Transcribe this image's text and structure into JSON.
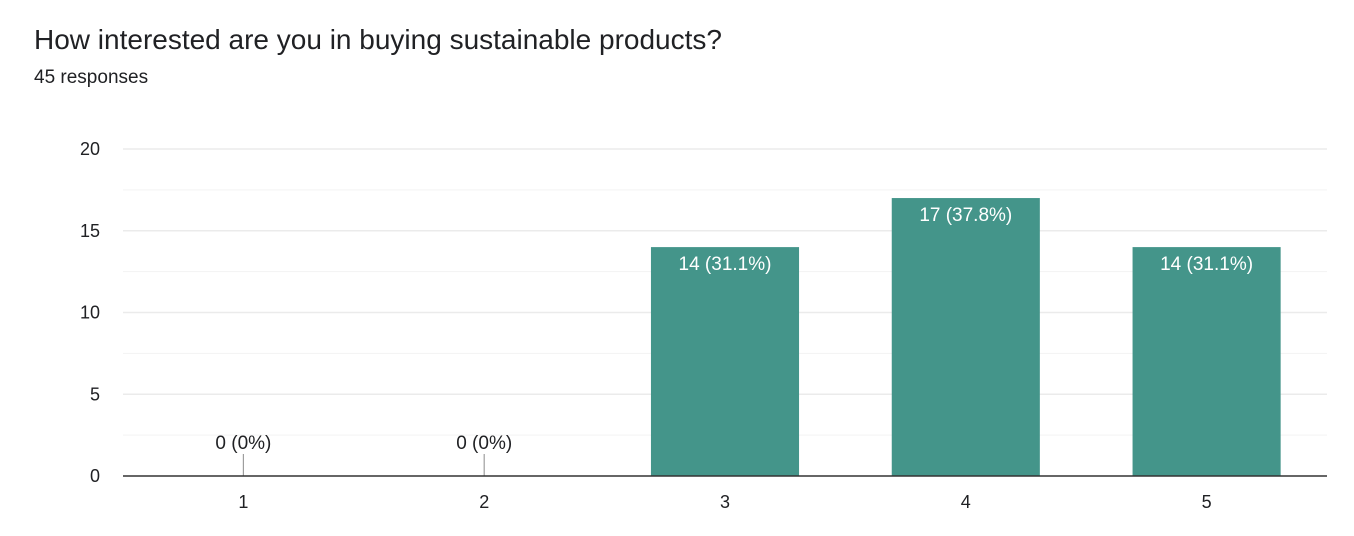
{
  "question": {
    "title": "How interested are you in buying sustainable products?",
    "responses": "45 responses"
  },
  "chart_data": {
    "type": "bar",
    "categories": [
      "1",
      "2",
      "3",
      "4",
      "5"
    ],
    "values": [
      0,
      0,
      14,
      17,
      14
    ],
    "data_labels": [
      "0 (0%)",
      "0 (0%)",
      "14 (31.1%)",
      "17 (37.8%)",
      "14 (31.1%)"
    ],
    "ylim": [
      0,
      20
    ],
    "yticks": [
      0,
      5,
      10,
      15,
      20
    ],
    "minor_gridlines": true,
    "legend": "none",
    "bar_color": "#44958a",
    "gridline_color": "#ebebeb",
    "axis_color": "#333333"
  }
}
